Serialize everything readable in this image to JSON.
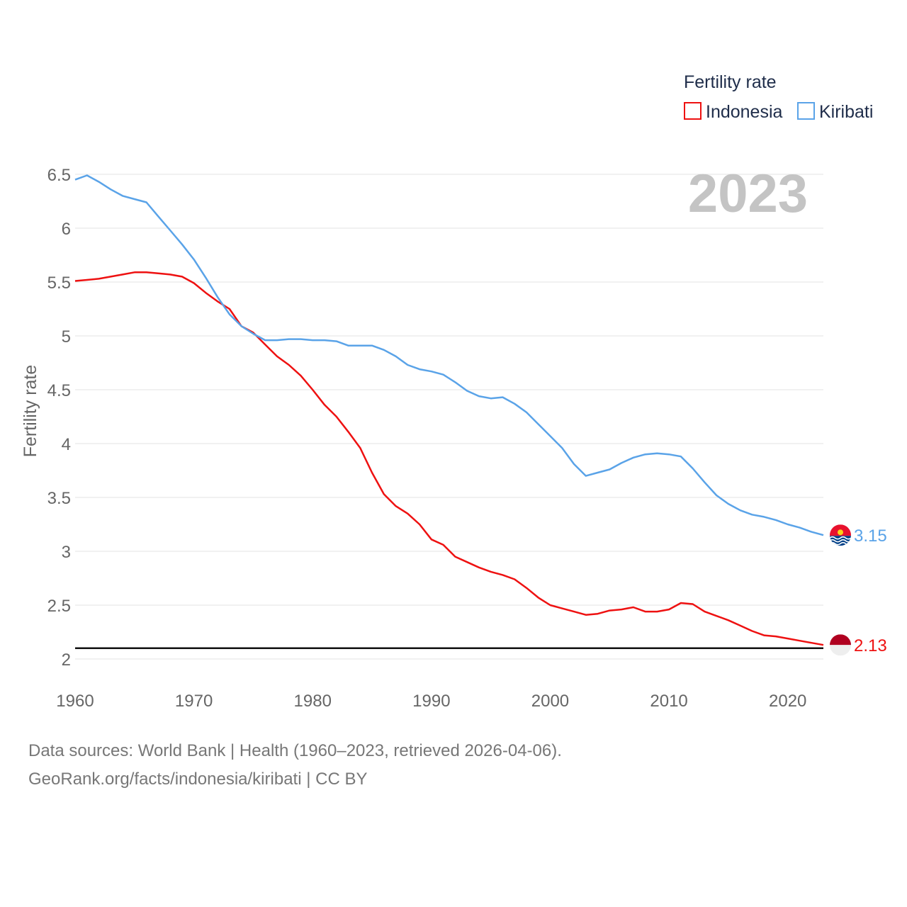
{
  "chart_data": {
    "type": "line",
    "title": "",
    "legend_title": "Fertility rate",
    "legend_position": "top-right",
    "xlabel": "",
    "ylabel": "Fertility rate",
    "xlim": [
      1960,
      2023
    ],
    "ylim": [
      1.9,
      6.6
    ],
    "x_ticks": [
      1960,
      1970,
      1980,
      1990,
      2000,
      2010,
      2020
    ],
    "y_ticks": [
      2,
      2.5,
      3,
      3.5,
      4,
      4.5,
      5,
      5.5,
      6,
      6.5
    ],
    "x_tick_labels": [
      "1960",
      "1970",
      "1980",
      "1990",
      "2000",
      "2010",
      "2020"
    ],
    "y_tick_labels": [
      "2",
      "2.5",
      "3",
      "3.5",
      "4",
      "4.5",
      "5",
      "5.5",
      "6",
      "6.5"
    ],
    "year_stamp": "2023",
    "reference_line": 2.1,
    "x": [
      1960,
      1961,
      1962,
      1963,
      1964,
      1965,
      1966,
      1967,
      1968,
      1969,
      1970,
      1971,
      1972,
      1973,
      1974,
      1975,
      1976,
      1977,
      1978,
      1979,
      1980,
      1981,
      1982,
      1983,
      1984,
      1985,
      1986,
      1987,
      1988,
      1989,
      1990,
      1991,
      1992,
      1993,
      1994,
      1995,
      1996,
      1997,
      1998,
      1999,
      2000,
      2001,
      2002,
      2003,
      2004,
      2005,
      2006,
      2007,
      2008,
      2009,
      2010,
      2011,
      2012,
      2013,
      2014,
      2015,
      2016,
      2017,
      2018,
      2019,
      2020,
      2021,
      2022,
      2023
    ],
    "series": [
      {
        "name": "Indonesia",
        "color": "#ee1111",
        "end_label": "2.13",
        "values": [
          5.51,
          5.52,
          5.53,
          5.55,
          5.57,
          5.59,
          5.59,
          5.58,
          5.57,
          5.55,
          5.49,
          5.4,
          5.32,
          5.25,
          5.09,
          5.03,
          4.92,
          4.81,
          4.73,
          4.63,
          4.5,
          4.36,
          4.25,
          4.11,
          3.96,
          3.73,
          3.53,
          3.42,
          3.35,
          3.25,
          3.11,
          3.06,
          2.95,
          2.9,
          2.85,
          2.81,
          2.78,
          2.74,
          2.66,
          2.57,
          2.5,
          2.47,
          2.44,
          2.41,
          2.42,
          2.45,
          2.46,
          2.48,
          2.44,
          2.44,
          2.46,
          2.52,
          2.51,
          2.44,
          2.4,
          2.36,
          2.31,
          2.26,
          2.22,
          2.21,
          2.19,
          2.17,
          2.15,
          2.13
        ]
      },
      {
        "name": "Kiribati",
        "color": "#5aa3e8",
        "end_label": "3.15",
        "values": [
          6.45,
          6.49,
          6.43,
          6.36,
          6.3,
          6.27,
          6.24,
          6.11,
          5.98,
          5.85,
          5.71,
          5.54,
          5.36,
          5.2,
          5.09,
          5.02,
          4.96,
          4.96,
          4.97,
          4.97,
          4.96,
          4.96,
          4.95,
          4.91,
          4.91,
          4.91,
          4.87,
          4.81,
          4.73,
          4.69,
          4.67,
          4.64,
          4.57,
          4.49,
          4.44,
          4.42,
          4.43,
          4.37,
          4.29,
          4.18,
          4.07,
          3.96,
          3.81,
          3.7,
          3.73,
          3.76,
          3.82,
          3.87,
          3.9,
          3.91,
          3.9,
          3.88,
          3.77,
          3.64,
          3.52,
          3.44,
          3.38,
          3.34,
          3.32,
          3.29,
          3.25,
          3.22,
          3.18,
          3.15
        ]
      }
    ]
  },
  "source": {
    "line1": "Data sources: World Bank | Health (1960–2023, retrieved 2026-04-06).",
    "line2": "GeoRank.org/facts/indonesia/kiribati | CC BY"
  }
}
